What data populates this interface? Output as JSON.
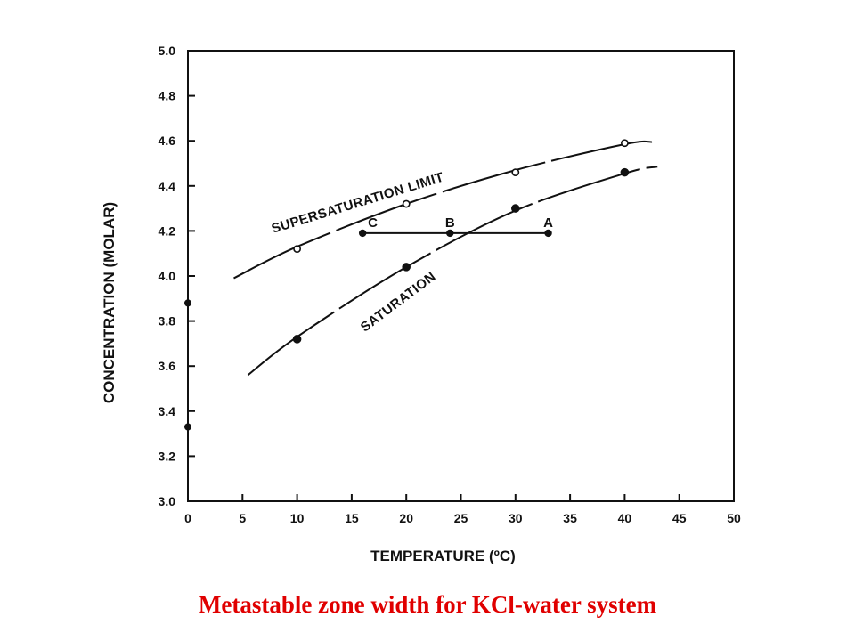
{
  "caption": "Metastable zone width for KCl-water system",
  "colors": {
    "ink": "#111111",
    "caption": "#e00000"
  },
  "chart_data": {
    "type": "line",
    "xlabel": "TEMPERATURE (ºC)",
    "ylabel": "CONCENTRATION (MOLAR)",
    "xlim": [
      0,
      50
    ],
    "ylim": [
      3.0,
      5.0
    ],
    "xticks": [
      0,
      5,
      10,
      15,
      20,
      25,
      30,
      35,
      40,
      45,
      50
    ],
    "yticks": [
      3.0,
      3.2,
      3.4,
      3.6,
      3.8,
      4.0,
      4.2,
      4.4,
      4.6,
      4.8,
      5.0
    ],
    "grid": false,
    "series": [
      {
        "name": "SUPERSATURATION LIMIT",
        "marker": "open-circle",
        "points": [
          [
            10,
            4.12
          ],
          [
            20,
            4.32
          ],
          [
            30,
            4.46
          ],
          [
            40,
            4.59
          ]
        ],
        "curve": [
          [
            4.2,
            3.99
          ],
          [
            10,
            4.13
          ],
          [
            20,
            4.32
          ],
          [
            30,
            4.47
          ],
          [
            40,
            4.585
          ],
          [
            42.5,
            4.595
          ]
        ]
      },
      {
        "name": "SATURATION",
        "marker": "filled-circle",
        "points": [
          [
            10,
            3.72
          ],
          [
            20,
            4.04
          ],
          [
            30,
            4.3
          ],
          [
            40,
            4.46
          ]
        ],
        "curve": [
          [
            5.5,
            3.56
          ],
          [
            10,
            3.73
          ],
          [
            20,
            4.04
          ],
          [
            30,
            4.29
          ],
          [
            40,
            4.455
          ],
          [
            43,
            4.485
          ]
        ]
      }
    ],
    "axis_points": [
      3.88,
      3.33
    ],
    "line_ABC": {
      "y": 4.19,
      "points": [
        {
          "label": "C",
          "x": 16
        },
        {
          "label": "B",
          "x": 24
        },
        {
          "label": "A",
          "x": 33
        }
      ]
    }
  }
}
